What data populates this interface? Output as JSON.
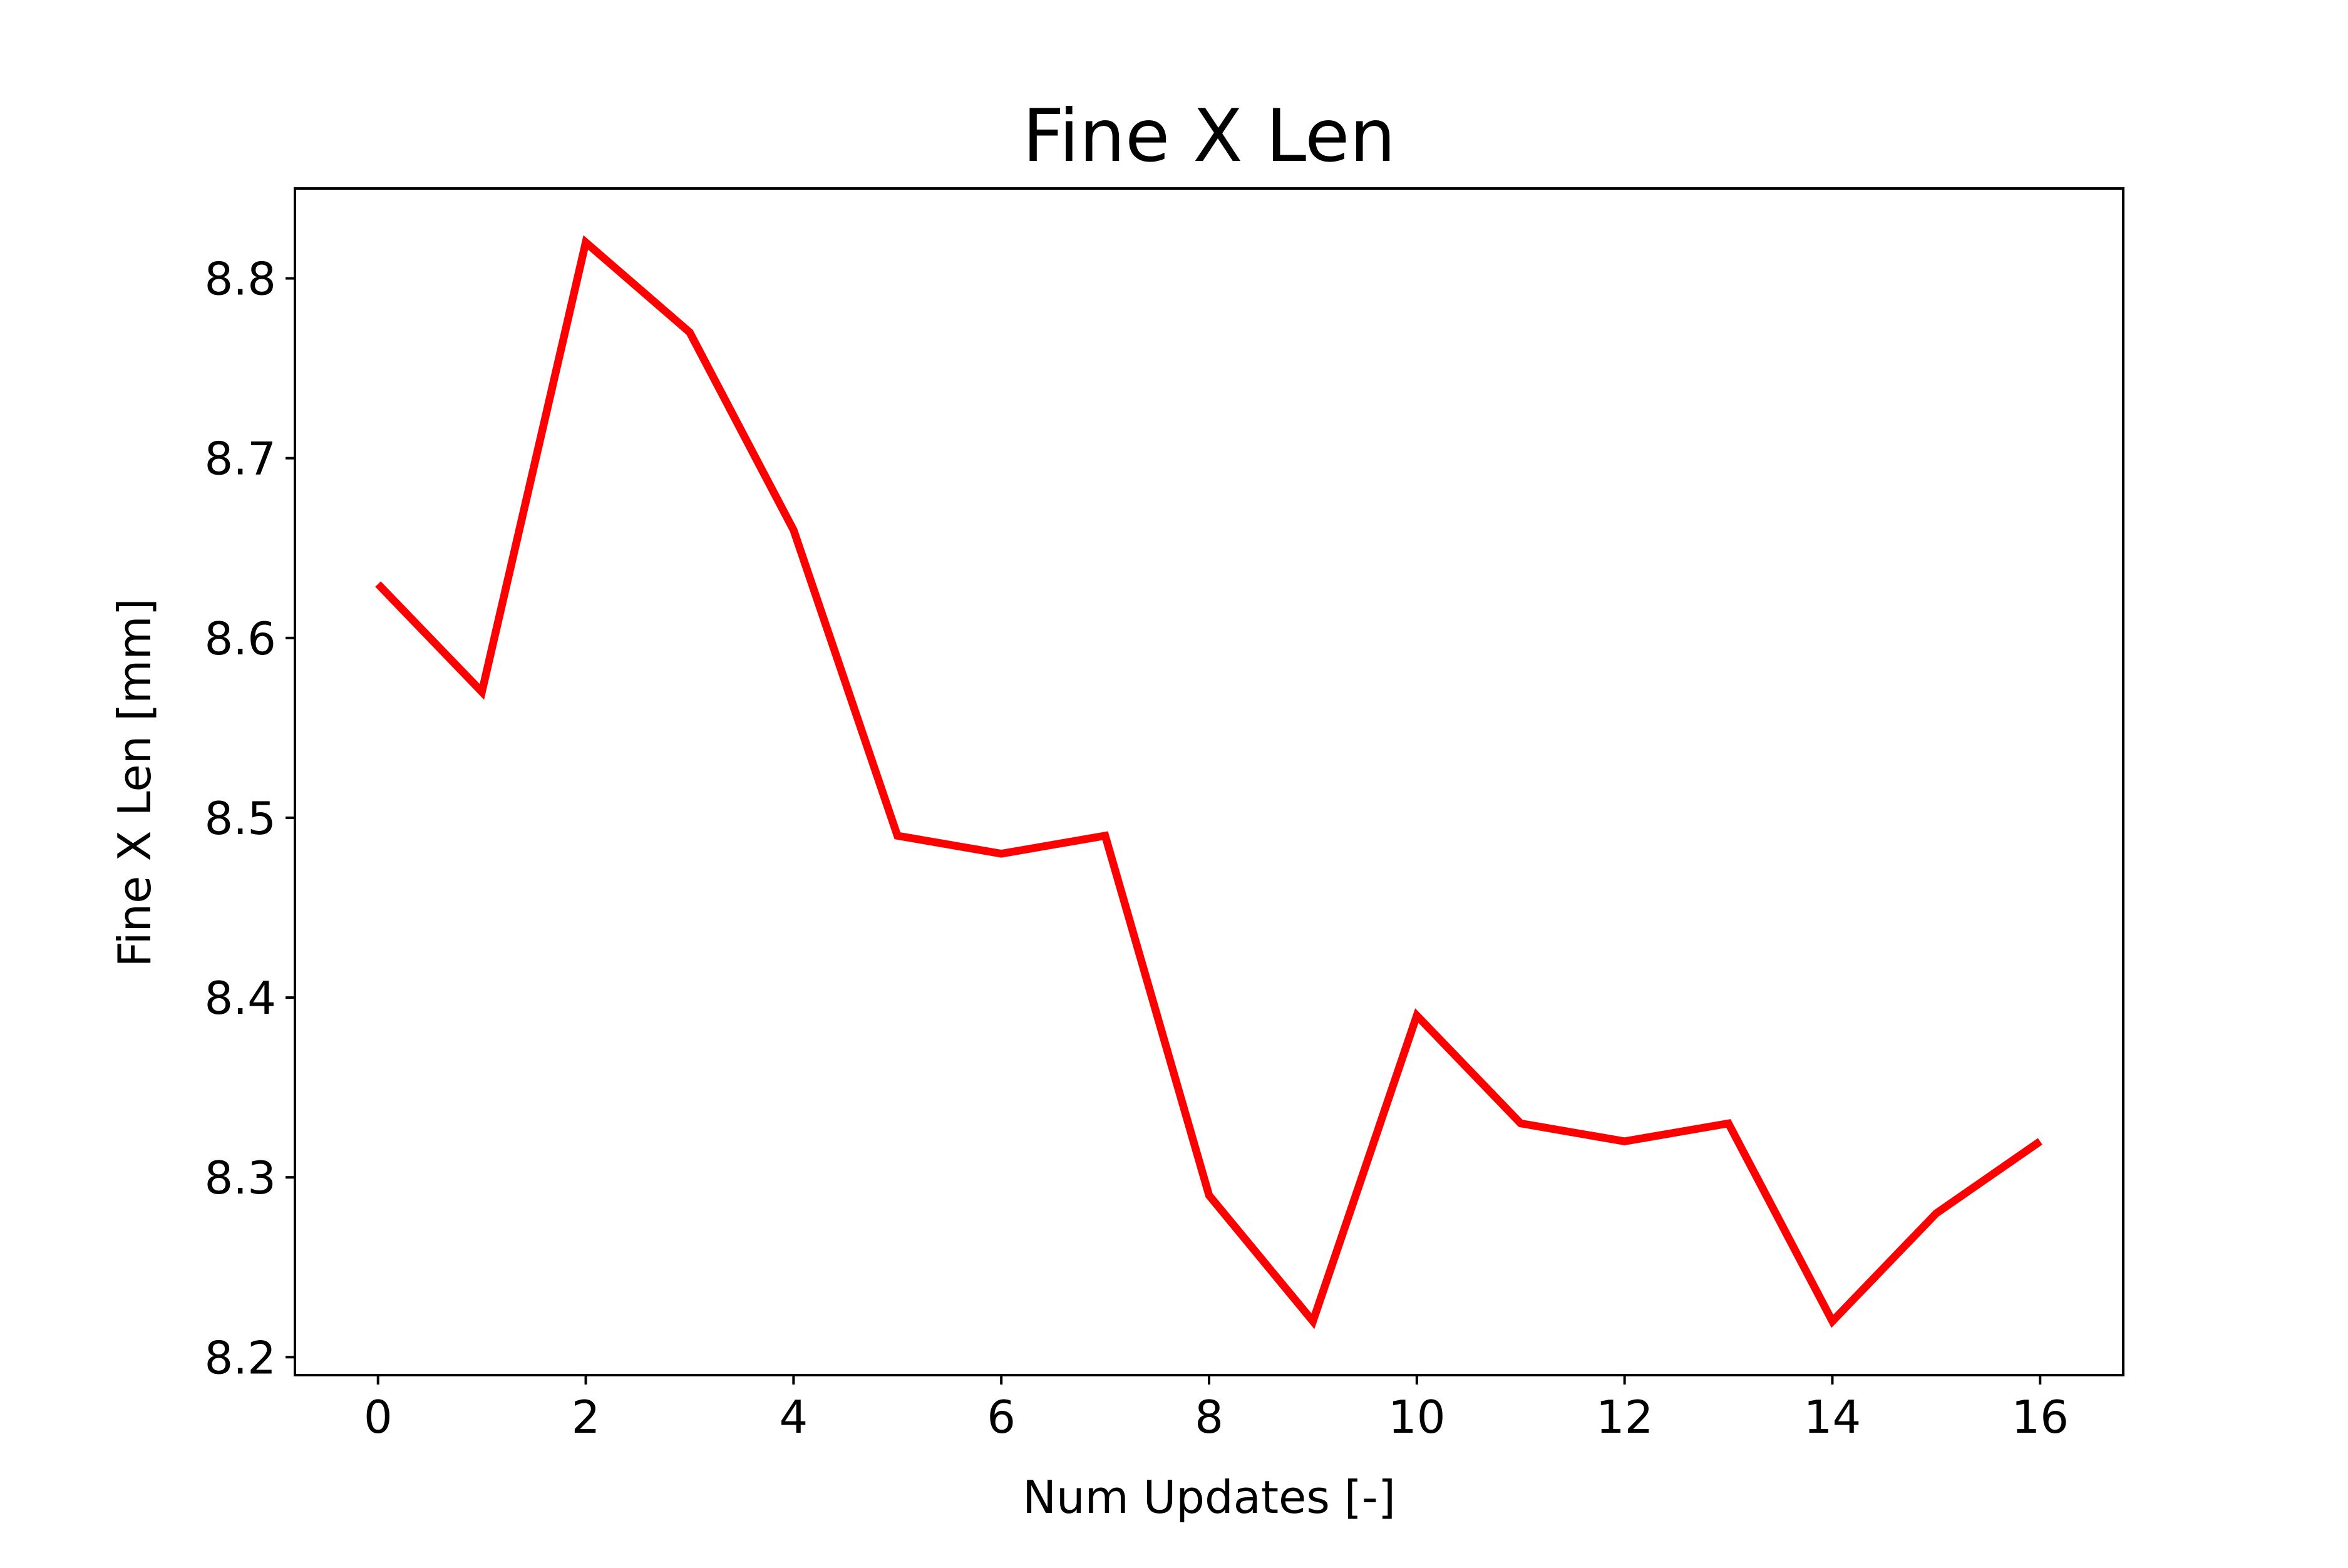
{
  "chart_data": {
    "type": "line",
    "title": "Fine X Len",
    "xlabel": "Num Updates [-]",
    "ylabel": "Fine X Len [mm]",
    "xlim": [
      -0.8,
      16.8
    ],
    "ylim": [
      8.19,
      8.85
    ],
    "xticks": [
      0,
      2,
      4,
      6,
      8,
      10,
      12,
      14,
      16
    ],
    "xtick_labels": [
      "0",
      "2",
      "4",
      "6",
      "8",
      "10",
      "12",
      "14",
      "16"
    ],
    "yticks": [
      8.2,
      8.3,
      8.4,
      8.5,
      8.6,
      8.7,
      8.8
    ],
    "ytick_labels": [
      "8.2",
      "8.3",
      "8.4",
      "8.5",
      "8.6",
      "8.7",
      "8.8"
    ],
    "grid": false,
    "series": [
      {
        "color": "#ff0000",
        "x": [
          0,
          1,
          2,
          3,
          4,
          5,
          6,
          7,
          8,
          9,
          10,
          11,
          12,
          13,
          14,
          15,
          16
        ],
        "y": [
          8.63,
          8.57,
          8.82,
          8.77,
          8.66,
          8.49,
          8.48,
          8.49,
          8.29,
          8.22,
          8.39,
          8.33,
          8.32,
          8.33,
          8.22,
          8.28,
          8.32
        ]
      }
    ]
  }
}
